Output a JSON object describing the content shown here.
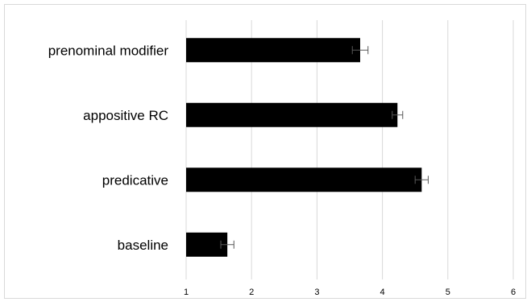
{
  "chart_data": {
    "type": "bar",
    "orientation": "horizontal",
    "title": "",
    "xlabel": "",
    "ylabel": "",
    "categories": [
      "prenominal modifier",
      "appositive RC",
      "predicative",
      "baseline"
    ],
    "values": [
      3.66,
      4.23,
      4.6,
      1.63
    ],
    "errors": [
      0.12,
      0.08,
      0.1,
      0.1
    ],
    "xlim": [
      1,
      6
    ],
    "xticks": [
      "1",
      "2",
      "3",
      "4",
      "5",
      "6"
    ],
    "grid": true,
    "legend": "none",
    "colors": {
      "bar": "#000000",
      "grid": "#d9d9d9",
      "error_bar": "#595959",
      "border": "#d9d9d9"
    }
  }
}
